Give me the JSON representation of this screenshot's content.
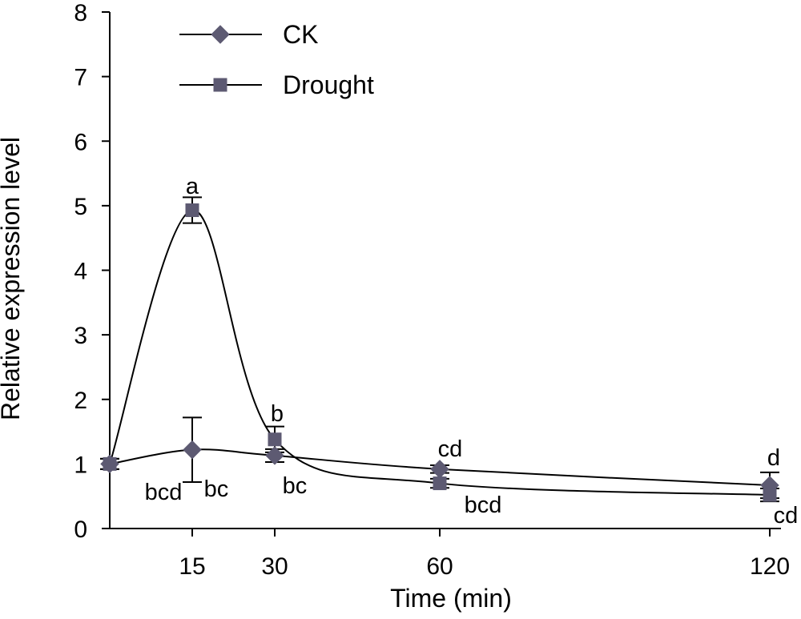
{
  "chart_data": {
    "type": "line",
    "x": [
      0,
      15,
      30,
      60,
      120
    ],
    "x_ticks": [
      "15",
      "30",
      "60",
      "120"
    ],
    "y_ticks": [
      "0",
      "1",
      "2",
      "3",
      "4",
      "5",
      "6",
      "7",
      "8"
    ],
    "xlabel": "Time (min)",
    "ylabel": "Relative expression level",
    "xlim": [
      0,
      120
    ],
    "ylim": [
      0,
      8
    ],
    "grid": false,
    "legend_position": "top-left",
    "series": [
      {
        "name": "CK",
        "marker": "diamond",
        "color": "#5d5a72",
        "values": [
          1.0,
          1.22,
          1.13,
          0.92,
          0.67
        ],
        "error": [
          0.08,
          0.5,
          0.1,
          0.06,
          0.2
        ],
        "labels": [
          "",
          "bc",
          "bc",
          "cd",
          "d"
        ]
      },
      {
        "name": "Drought",
        "marker": "square",
        "color": "#5d5a72",
        "values": [
          1.0,
          4.93,
          1.38,
          0.7,
          0.52
        ],
        "error": [
          0.08,
          0.2,
          0.2,
          0.07,
          0.1
        ],
        "labels": [
          "bcd",
          "a",
          "b",
          "bcd",
          "cd"
        ]
      }
    ]
  }
}
